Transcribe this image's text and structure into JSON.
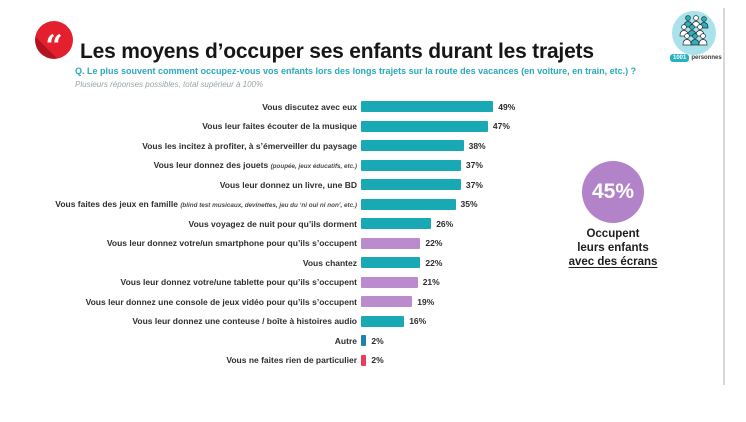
{
  "header": {
    "title": "Les moyens d’occuper ses enfants durant les trajets",
    "quote_glyph": "“",
    "logo": {
      "count": "1001",
      "label": "personnes"
    }
  },
  "question": {
    "text": "Q. Le plus souvent comment occupez-vous vos enfants lors des longs trajets sur la route des vacances (en voiture, en train, etc.) ?",
    "subtext": "Plusieurs réponses possibles, total supérieur à 100%"
  },
  "highlight": {
    "value": "45%",
    "caption_lines": [
      "Occupent",
      "leurs enfants",
      "avec des écrans"
    ]
  },
  "colors": {
    "teal": "#18a9b5",
    "purple": "#ba8cce",
    "dark_teal": "#1b84a8",
    "red": "#ee3b5b",
    "accent_circle": "#b283c9",
    "question_teal": "#2ba9be",
    "badge_red": "#e5202e",
    "logo_teal": "#28b2c0"
  },
  "chart_data": {
    "type": "bar",
    "orientation": "horizontal",
    "title": "Les moyens d’occuper ses enfants durant les trajets",
    "xlabel": "",
    "ylabel": "",
    "xlim": [
      0,
      50
    ],
    "value_suffix": "%",
    "grid": false,
    "legend": "none",
    "categories": [
      "Vous discutez avec eux",
      "Vous leur faites écouter de la musique",
      "Vous les incitez à profiter, à s’émerveiller du paysage",
      "Vous leur donnez des jouets (poupée, jeux éducatifs, etc.)",
      "Vous leur donnez un livre, une BD",
      "Vous faites des jeux en famille (blind test musicaux, devinettes, jeu du ‘ni oui ni non’, etc.)",
      "Vous voyagez de nuit pour qu’ils dorment",
      "Vous leur donnez votre/un smartphone pour qu’ils s’occupent",
      "Vous chantez",
      "Vous leur donnez votre/une tablette pour qu’ils s’occupent",
      "Vous leur donnez une console de jeux vidéo pour qu’ils s’occupent",
      "Vous leur donnez une conteuse / boîte à histoires audio",
      "Autre",
      "Vous ne faites rien de particulier"
    ],
    "values": [
      49,
      47,
      38,
      37,
      37,
      35,
      26,
      22,
      22,
      21,
      19,
      16,
      2,
      2
    ],
    "bars": [
      {
        "label": "Vous discutez avec eux",
        "note": "",
        "value": 49,
        "color": "teal"
      },
      {
        "label": "Vous leur faites écouter de la musique",
        "note": "",
        "value": 47,
        "color": "teal"
      },
      {
        "label": "Vous les incitez à profiter, à s’émerveiller du paysage",
        "note": "",
        "value": 38,
        "color": "teal"
      },
      {
        "label": "Vous leur donnez des jouets",
        "note": "(poupée, jeux éducatifs, etc.)",
        "value": 37,
        "color": "teal"
      },
      {
        "label": "Vous leur donnez un livre, une BD",
        "note": "",
        "value": 37,
        "color": "teal"
      },
      {
        "label": "Vous faites des jeux en famille",
        "note": "(blind test musicaux, devinettes, jeu du ‘ni oui ni non’, etc.)",
        "value": 35,
        "color": "teal"
      },
      {
        "label": "Vous voyagez de nuit pour qu’ils dorment",
        "note": "",
        "value": 26,
        "color": "teal"
      },
      {
        "label": "Vous leur donnez votre/un smartphone pour qu’ils s’occupent",
        "note": "",
        "value": 22,
        "color": "purple"
      },
      {
        "label": "Vous chantez",
        "note": "",
        "value": 22,
        "color": "teal"
      },
      {
        "label": "Vous leur donnez votre/une tablette pour qu’ils s’occupent",
        "note": "",
        "value": 21,
        "color": "purple"
      },
      {
        "label": "Vous leur donnez une console de jeux vidéo pour qu’ils s’occupent",
        "note": "",
        "value": 19,
        "color": "purple"
      },
      {
        "label": "Vous leur donnez une conteuse / boîte à histoires audio",
        "note": "",
        "value": 16,
        "color": "teal"
      },
      {
        "label": "Autre",
        "note": "",
        "value": 2,
        "color": "dark_teal"
      },
      {
        "label": "Vous ne faites rien de particulier",
        "note": "",
        "value": 2,
        "color": "red"
      }
    ]
  }
}
